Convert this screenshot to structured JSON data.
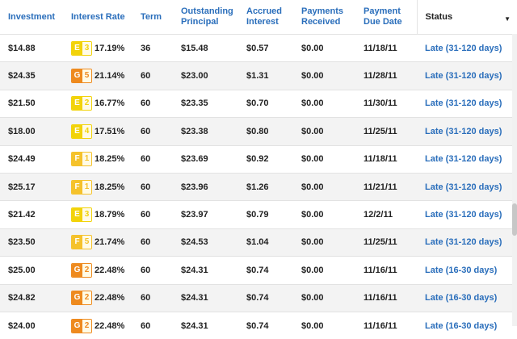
{
  "headers": {
    "investment": "Investment",
    "interest_rate": "Interest Rate",
    "term": "Term",
    "outstanding_principal_1": "Outstanding",
    "outstanding_principal_2": "Principal",
    "accrued_interest_1": "Accrued",
    "accrued_interest_2": "Interest",
    "payments_received_1": "Payments",
    "payments_received_2": "Received",
    "payment_due_date_1": "Payment",
    "payment_due_date_2": "Due Date",
    "status": "Status",
    "sort_icon": "▼"
  },
  "grade_colors": {
    "E": "#f2d30a",
    "F": "#f5c22b",
    "G": "#ee8a1e"
  },
  "rows": [
    {
      "investment": "$14.88",
      "grade": "E",
      "subgrade": "3",
      "rate": "17.19%",
      "term": "36",
      "principal": "$15.48",
      "interest": "$0.57",
      "payments": "$0.00",
      "due": "11/18/11",
      "status": "Late (31-120 days)"
    },
    {
      "investment": "$24.35",
      "grade": "G",
      "subgrade": "5",
      "rate": "21.14%",
      "term": "60",
      "principal": "$23.00",
      "interest": "$1.31",
      "payments": "$0.00",
      "due": "11/28/11",
      "status": "Late (31-120 days)"
    },
    {
      "investment": "$21.50",
      "grade": "E",
      "subgrade": "2",
      "rate": "16.77%",
      "term": "60",
      "principal": "$23.35",
      "interest": "$0.70",
      "payments": "$0.00",
      "due": "11/30/11",
      "status": "Late (31-120 days)"
    },
    {
      "investment": "$18.00",
      "grade": "E",
      "subgrade": "4",
      "rate": "17.51%",
      "term": "60",
      "principal": "$23.38",
      "interest": "$0.80",
      "payments": "$0.00",
      "due": "11/25/11",
      "status": "Late (31-120 days)"
    },
    {
      "investment": "$24.49",
      "grade": "F",
      "subgrade": "1",
      "rate": "18.25%",
      "term": "60",
      "principal": "$23.69",
      "interest": "$0.92",
      "payments": "$0.00",
      "due": "11/18/11",
      "status": "Late (31-120 days)"
    },
    {
      "investment": "$25.17",
      "grade": "F",
      "subgrade": "1",
      "rate": "18.25%",
      "term": "60",
      "principal": "$23.96",
      "interest": "$1.26",
      "payments": "$0.00",
      "due": "11/21/11",
      "status": "Late (31-120 days)"
    },
    {
      "investment": "$21.42",
      "grade": "E",
      "subgrade": "3",
      "rate": "18.79%",
      "term": "60",
      "principal": "$23.97",
      "interest": "$0.79",
      "payments": "$0.00",
      "due": "12/2/11",
      "status": "Late (31-120 days)"
    },
    {
      "investment": "$23.50",
      "grade": "F",
      "subgrade": "5",
      "rate": "21.74%",
      "term": "60",
      "principal": "$24.53",
      "interest": "$1.04",
      "payments": "$0.00",
      "due": "11/25/11",
      "status": "Late (31-120 days)"
    },
    {
      "investment": "$25.00",
      "grade": "G",
      "subgrade": "2",
      "rate": "22.48%",
      "term": "60",
      "principal": "$24.31",
      "interest": "$0.74",
      "payments": "$0.00",
      "due": "11/16/11",
      "status": "Late (16-30 days)"
    },
    {
      "investment": "$24.82",
      "grade": "G",
      "subgrade": "2",
      "rate": "22.48%",
      "term": "60",
      "principal": "$24.31",
      "interest": "$0.74",
      "payments": "$0.00",
      "due": "11/16/11",
      "status": "Late (16-30 days)"
    },
    {
      "investment": "$24.00",
      "grade": "G",
      "subgrade": "2",
      "rate": "22.48%",
      "term": "60",
      "principal": "$24.31",
      "interest": "$0.74",
      "payments": "$0.00",
      "due": "11/16/11",
      "status": "Late (16-30 days)"
    }
  ]
}
